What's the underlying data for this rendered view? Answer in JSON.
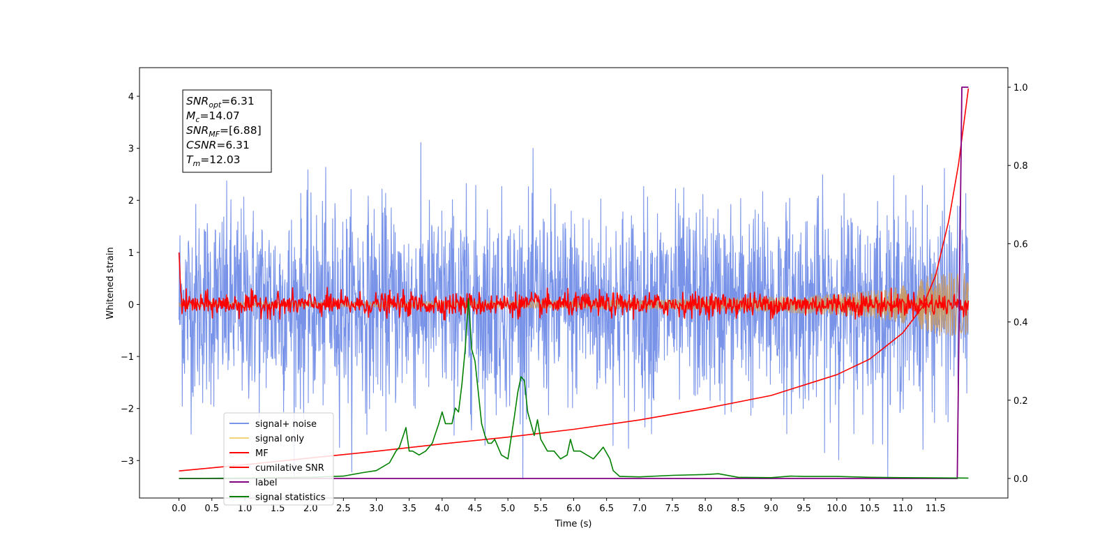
{
  "chart_data": {
    "type": "line",
    "xlabel": "Time (s)",
    "ylabel": "Whitened strain",
    "xlim": [
      -0.6,
      12.6
    ],
    "ylim": [
      -3.72,
      4.55
    ],
    "y2lim": [
      -0.05,
      1.05
    ],
    "x_ticks": [
      "0.0",
      "0.5",
      "1.0",
      "1.5",
      "2.0",
      "2.5",
      "3.0",
      "3.5",
      "4.0",
      "4.5",
      "5.0",
      "5.5",
      "6.0",
      "6.5",
      "7.0",
      "7.5",
      "8.0",
      "8.5",
      "9.0",
      "9.5",
      "10.0",
      "10.5",
      "11.0",
      "11.5"
    ],
    "y_ticks": [
      "-3",
      "-2",
      "-1",
      "0",
      "1",
      "2",
      "3",
      "4"
    ],
    "y2_ticks": [
      "0.0",
      "0.2",
      "0.4",
      "0.6",
      "0.8",
      "1.0"
    ],
    "grid": false,
    "legend_position": "lower-left",
    "annotation": {
      "lines": [
        {
          "base": "SNR",
          "sub": "opt",
          "value": "=6.31"
        },
        {
          "base": "M",
          "sub": "c",
          "value": "=14.07"
        },
        {
          "base": "SNR",
          "sub": "MF",
          "value": "=[6.88]"
        },
        {
          "base": "CSNR",
          "sub": "",
          "value": "=6.31"
        },
        {
          "base": "T",
          "sub": "m",
          "value": "=12.03"
        }
      ]
    },
    "series": [
      {
        "name": "signal+ noise",
        "color": "#7893e8",
        "axis": "left",
        "kind": "noise",
        "x_range": [
          0.0,
          12.0
        ],
        "mean": 0.0,
        "approx_envelope": [
          -2.8,
          3.4
        ]
      },
      {
        "name": "signal only",
        "color": "#f5d27a",
        "axis": "left",
        "kind": "chirp",
        "x_range": [
          0.0,
          12.0
        ],
        "approx_end_amplitude": 0.6
      },
      {
        "name": "MF",
        "color": "#ff0000",
        "axis": "left",
        "kind": "noise",
        "x_range": [
          0.0,
          12.0
        ],
        "mean": 0.0,
        "approx_envelope": [
          -0.3,
          0.5
        ],
        "start_value": 1.0
      },
      {
        "name": "cumilative SNR",
        "color": "#ff0000",
        "axis": "left",
        "kind": "curve",
        "x": [
          0.0,
          1,
          2,
          3,
          4,
          5,
          6,
          7,
          8,
          9,
          10,
          10.5,
          11,
          11.3,
          11.5,
          11.7,
          11.85,
          12.0
        ],
        "y": [
          -3.2,
          -3.08,
          -2.95,
          -2.82,
          -2.68,
          -2.55,
          -2.4,
          -2.22,
          -2.0,
          -1.75,
          -1.35,
          -1.05,
          -0.55,
          -0.05,
          0.55,
          1.6,
          2.7,
          4.15
        ]
      },
      {
        "name": "label",
        "color": "#800080",
        "axis": "right",
        "kind": "step",
        "x": [
          0.0,
          11.83,
          11.9,
          12.0
        ],
        "y": [
          0.0,
          0.0,
          1.0,
          1.0
        ]
      },
      {
        "name": "signal statistics",
        "color": "#008000",
        "axis": "right",
        "kind": "curve",
        "x": [
          0.0,
          1.0,
          2.0,
          2.5,
          2.8,
          3.0,
          3.1,
          3.2,
          3.3,
          3.35,
          3.45,
          3.5,
          3.55,
          3.65,
          3.75,
          3.85,
          3.95,
          4.0,
          4.05,
          4.15,
          4.2,
          4.25,
          4.3,
          4.35,
          4.4,
          4.45,
          4.5,
          4.6,
          4.65,
          4.7,
          4.75,
          4.8,
          4.9,
          5.0,
          5.1,
          5.15,
          5.2,
          5.25,
          5.3,
          5.35,
          5.4,
          5.45,
          5.5,
          5.6,
          5.7,
          5.8,
          5.9,
          5.95,
          6.0,
          6.1,
          6.2,
          6.3,
          6.35,
          6.45,
          6.55,
          6.6,
          6.7,
          7.0,
          7.5,
          8.0,
          8.2,
          8.5,
          9.0,
          9.3,
          9.5,
          10.0,
          10.5,
          11.0,
          12.0
        ],
        "y": [
          0.0,
          0.001,
          0.003,
          0.006,
          0.015,
          0.02,
          0.03,
          0.04,
          0.07,
          0.08,
          0.13,
          0.07,
          0.07,
          0.06,
          0.07,
          0.09,
          0.14,
          0.17,
          0.14,
          0.14,
          0.18,
          0.17,
          0.24,
          0.33,
          0.46,
          0.33,
          0.3,
          0.14,
          0.11,
          0.09,
          0.09,
          0.1,
          0.06,
          0.05,
          0.16,
          0.22,
          0.26,
          0.25,
          0.17,
          0.14,
          0.11,
          0.15,
          0.1,
          0.07,
          0.07,
          0.05,
          0.06,
          0.1,
          0.07,
          0.07,
          0.06,
          0.05,
          0.06,
          0.08,
          0.05,
          0.02,
          0.005,
          0.004,
          0.008,
          0.01,
          0.012,
          0.003,
          0.002,
          0.006,
          0.005,
          0.005,
          0.003,
          0.002,
          0.001
        ]
      }
    ]
  }
}
